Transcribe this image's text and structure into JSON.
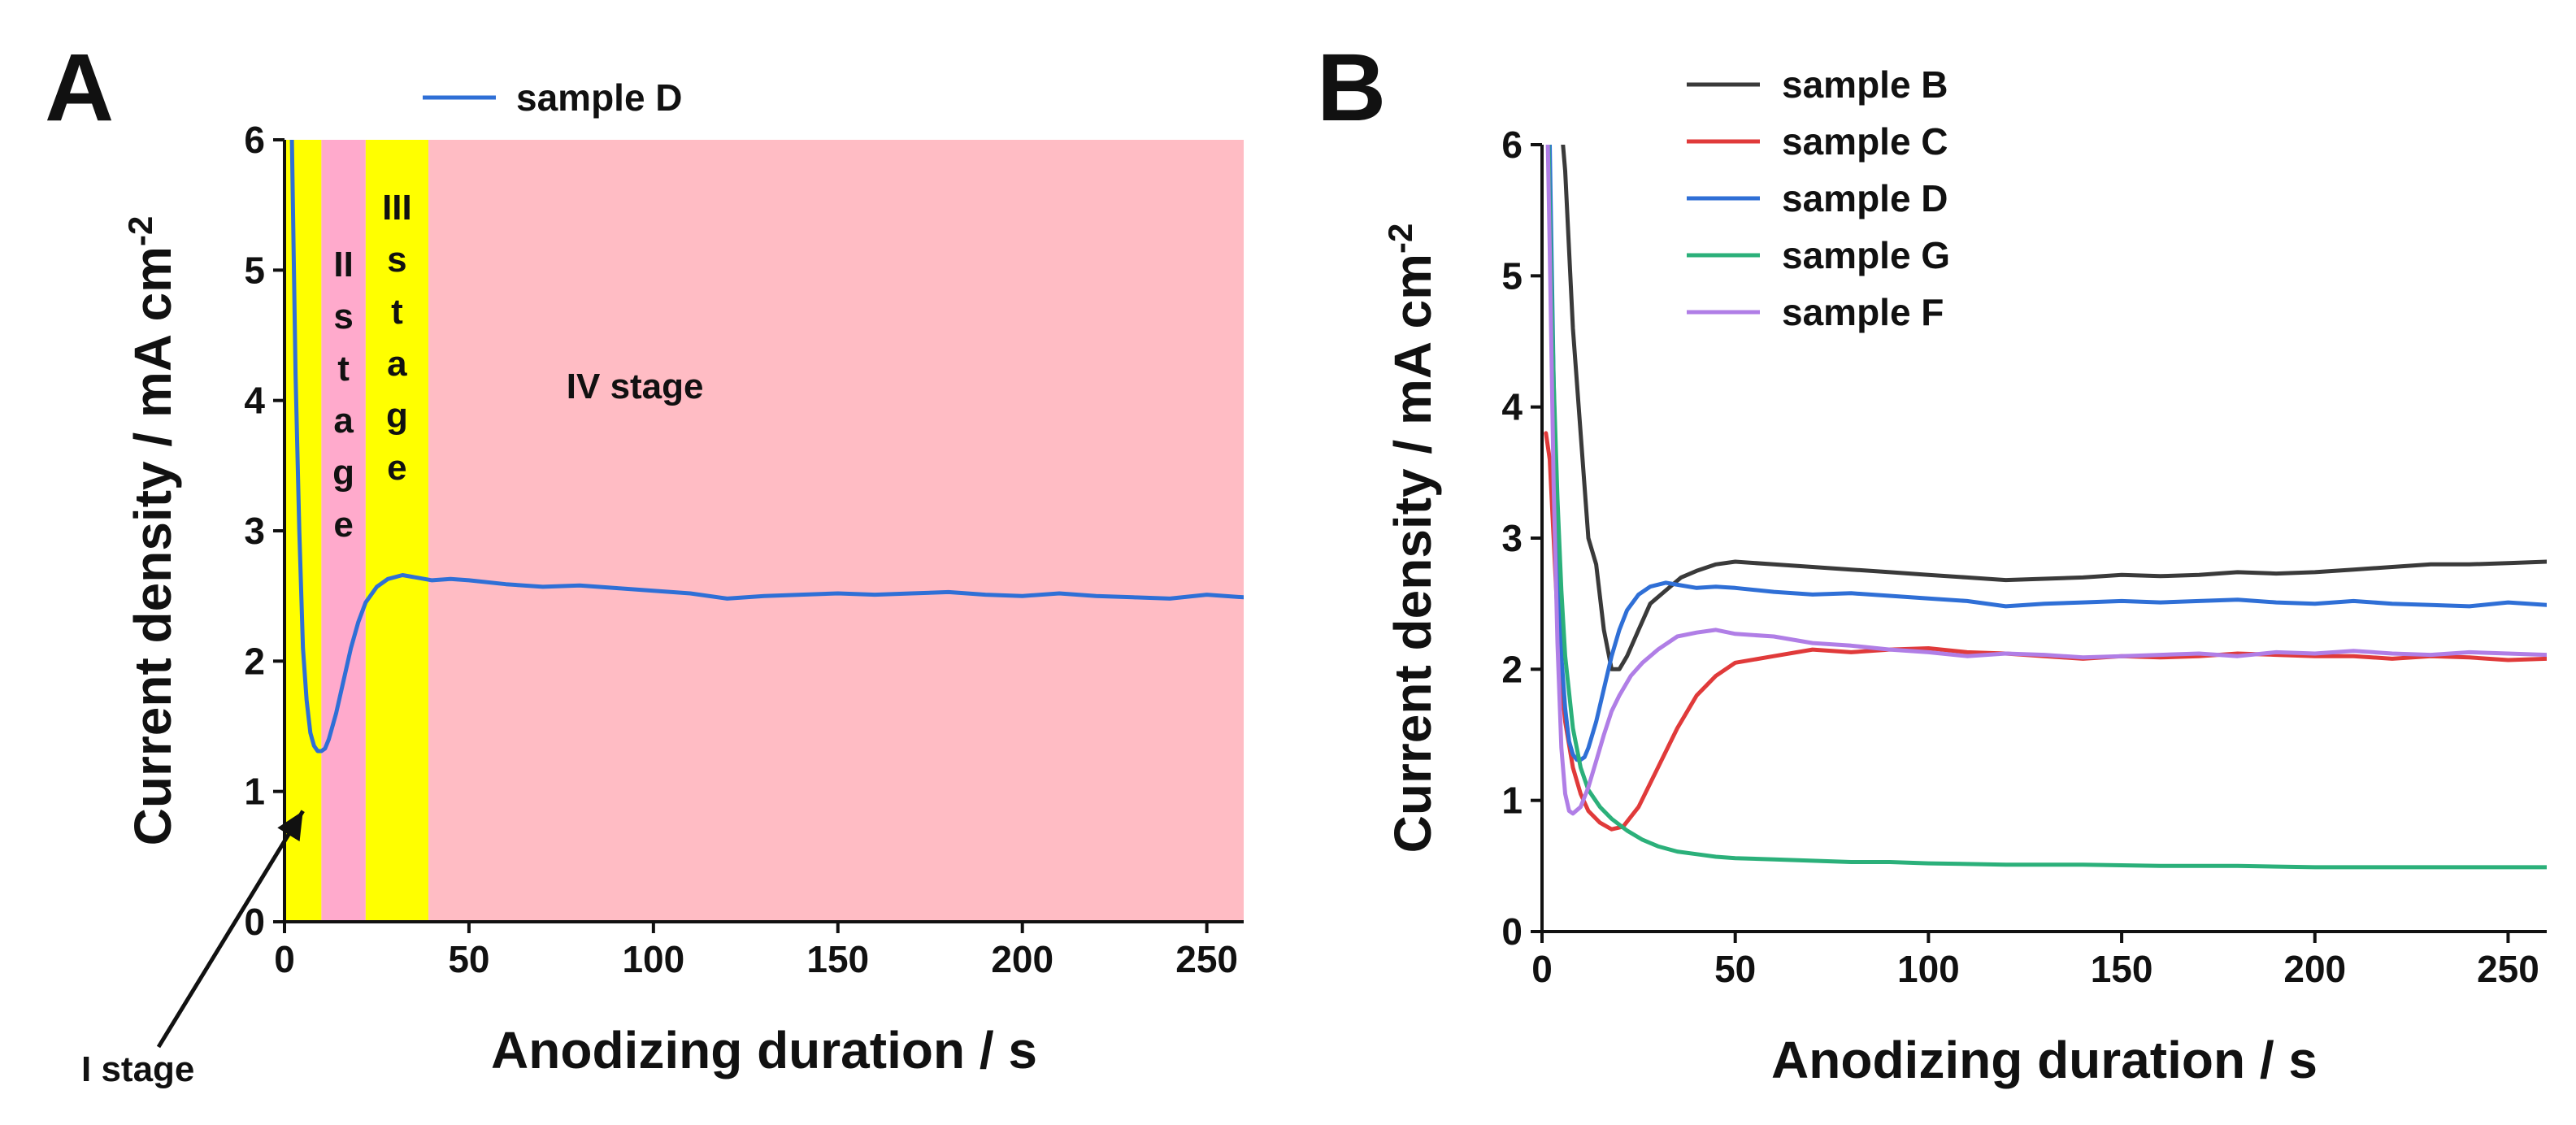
{
  "panels": [
    {
      "letter": "A",
      "chart_data": {
        "type": "line",
        "xlabel": "Anodizing duration / s",
        "ylabel_main": "Current density / mA cm",
        "ylabel_sup": "-2",
        "xlim": [
          0,
          260
        ],
        "ylim": [
          0,
          6
        ],
        "xticks": [
          0,
          50,
          100,
          150,
          200,
          250
        ],
        "yticks": [
          0,
          1,
          2,
          3,
          4,
          5,
          6
        ],
        "legend_position": "top",
        "stages": [
          {
            "label": "I stage",
            "x_start": 0,
            "x_end": 10,
            "color": "#ffff00"
          },
          {
            "label": "II stage",
            "x_start": 10,
            "x_end": 22,
            "color": "#ffaacc"
          },
          {
            "label": "III stage",
            "x_start": 22,
            "x_end": 39,
            "color": "#ffff00"
          },
          {
            "label": "IV stage",
            "x_start": 39,
            "x_end": 260,
            "color": "#ffbcc4"
          }
        ],
        "stage_vertical_letters": {
          "II": [
            "II",
            "s",
            "t",
            "a",
            "g",
            "e"
          ],
          "III": [
            "III",
            "s",
            "t",
            "a",
            "g",
            "e"
          ]
        },
        "series": [
          {
            "name": "sample D",
            "color": "#2f6fd6",
            "x": [
              1,
              2,
              3,
              4,
              5,
              6,
              7,
              8,
              9,
              10,
              11,
              12,
              14,
              16,
              18,
              20,
              22,
              25,
              28,
              32,
              36,
              40,
              45,
              50,
              60,
              70,
              80,
              90,
              100,
              110,
              120,
              130,
              140,
              150,
              160,
              170,
              180,
              190,
              200,
              210,
              220,
              230,
              240,
              250,
              260
            ],
            "y": [
              7.2,
              6.0,
              4.2,
              3.0,
              2.1,
              1.7,
              1.45,
              1.35,
              1.31,
              1.31,
              1.33,
              1.4,
              1.6,
              1.85,
              2.1,
              2.3,
              2.45,
              2.57,
              2.63,
              2.66,
              2.64,
              2.62,
              2.63,
              2.62,
              2.59,
              2.57,
              2.58,
              2.56,
              2.54,
              2.52,
              2.48,
              2.5,
              2.51,
              2.52,
              2.51,
              2.52,
              2.53,
              2.51,
              2.5,
              2.52,
              2.5,
              2.49,
              2.48,
              2.51,
              2.49
            ]
          }
        ]
      }
    },
    {
      "letter": "B",
      "chart_data": {
        "type": "line",
        "xlabel": "Anodizing duration / s",
        "ylabel_main": "Current density / mA cm",
        "ylabel_sup": "-2",
        "xlim": [
          0,
          260
        ],
        "ylim": [
          0,
          6
        ],
        "xticks": [
          0,
          50,
          100,
          150,
          200,
          250
        ],
        "yticks": [
          0,
          1,
          2,
          3,
          4,
          5,
          6
        ],
        "legend_position": "top-left",
        "series": [
          {
            "name": "sample B",
            "color": "#3a3a3a",
            "x": [
              2,
              4,
              6,
              8,
              10,
              12,
              14,
              16,
              18,
              20,
              22,
              25,
              28,
              32,
              36,
              40,
              45,
              50,
              60,
              70,
              80,
              90,
              100,
              110,
              120,
              130,
              140,
              150,
              160,
              170,
              180,
              190,
              200,
              210,
              220,
              230,
              240,
              250,
              260
            ],
            "y": [
              7.0,
              6.5,
              5.8,
              4.6,
              3.8,
              3.0,
              2.8,
              2.3,
              2.0,
              2.0,
              2.1,
              2.3,
              2.5,
              2.6,
              2.7,
              2.75,
              2.8,
              2.82,
              2.8,
              2.78,
              2.76,
              2.74,
              2.72,
              2.7,
              2.68,
              2.69,
              2.7,
              2.72,
              2.71,
              2.72,
              2.74,
              2.73,
              2.74,
              2.76,
              2.78,
              2.8,
              2.8,
              2.81,
              2.82
            ]
          },
          {
            "name": "sample C",
            "color": "#e03a3a",
            "x": [
              1,
              2,
              3,
              4,
              5,
              6,
              8,
              10,
              12,
              15,
              18,
              21,
              25,
              30,
              35,
              40,
              45,
              50,
              60,
              70,
              80,
              90,
              100,
              110,
              120,
              130,
              140,
              150,
              160,
              170,
              180,
              190,
              200,
              210,
              220,
              230,
              240,
              250,
              260
            ],
            "y": [
              3.8,
              3.6,
              3.0,
              2.4,
              1.9,
              1.6,
              1.25,
              1.05,
              0.92,
              0.83,
              0.78,
              0.8,
              0.95,
              1.25,
              1.55,
              1.8,
              1.95,
              2.05,
              2.1,
              2.15,
              2.13,
              2.15,
              2.16,
              2.13,
              2.12,
              2.1,
              2.08,
              2.1,
              2.09,
              2.1,
              2.12,
              2.11,
              2.1,
              2.1,
              2.08,
              2.1,
              2.09,
              2.07,
              2.08
            ]
          },
          {
            "name": "sample D",
            "color": "#2f6fd6",
            "x": [
              1,
              2,
              3,
              4,
              5,
              6,
              7,
              8,
              9,
              10,
              11,
              12,
              14,
              16,
              18,
              20,
              22,
              25,
              28,
              32,
              36,
              40,
              45,
              50,
              60,
              70,
              80,
              90,
              100,
              110,
              120,
              130,
              140,
              150,
              160,
              170,
              180,
              190,
              200,
              210,
              220,
              230,
              240,
              250,
              260
            ],
            "y": [
              7.2,
              6.0,
              4.2,
              3.0,
              2.1,
              1.7,
              1.45,
              1.35,
              1.31,
              1.31,
              1.33,
              1.4,
              1.6,
              1.85,
              2.1,
              2.3,
              2.45,
              2.57,
              2.63,
              2.66,
              2.64,
              2.62,
              2.63,
              2.62,
              2.59,
              2.57,
              2.58,
              2.56,
              2.54,
              2.52,
              2.48,
              2.5,
              2.51,
              2.52,
              2.51,
              2.52,
              2.53,
              2.51,
              2.5,
              2.52,
              2.5,
              2.49,
              2.48,
              2.51,
              2.49
            ]
          },
          {
            "name": "sample G",
            "color": "#2bb07a",
            "x": [
              1,
              2,
              3,
              4,
              5,
              6,
              8,
              10,
              12,
              15,
              18,
              22,
              26,
              30,
              35,
              40,
              45,
              50,
              60,
              70,
              80,
              90,
              100,
              120,
              140,
              160,
              180,
              200,
              220,
              240,
              260
            ],
            "y": [
              7.0,
              5.5,
              4.2,
              3.3,
              2.6,
              2.1,
              1.55,
              1.25,
              1.08,
              0.95,
              0.86,
              0.77,
              0.7,
              0.65,
              0.61,
              0.59,
              0.57,
              0.56,
              0.55,
              0.54,
              0.53,
              0.53,
              0.52,
              0.51,
              0.51,
              0.5,
              0.5,
              0.49,
              0.49,
              0.49,
              0.49
            ]
          },
          {
            "name": "sample F",
            "color": "#b07ee6",
            "x": [
              1,
              2,
              3,
              4,
              5,
              6,
              7,
              8,
              10,
              12,
              14,
              16,
              18,
              20,
              23,
              26,
              30,
              35,
              40,
              45,
              50,
              60,
              70,
              80,
              90,
              100,
              110,
              120,
              130,
              140,
              150,
              160,
              170,
              180,
              190,
              200,
              210,
              220,
              230,
              240,
              250,
              260
            ],
            "y": [
              6.8,
              5.2,
              3.4,
              2.2,
              1.4,
              1.05,
              0.92,
              0.9,
              0.95,
              1.1,
              1.3,
              1.5,
              1.68,
              1.8,
              1.95,
              2.05,
              2.15,
              2.25,
              2.28,
              2.3,
              2.27,
              2.25,
              2.2,
              2.18,
              2.15,
              2.13,
              2.1,
              2.12,
              2.11,
              2.09,
              2.1,
              2.11,
              2.12,
              2.1,
              2.13,
              2.12,
              2.14,
              2.12,
              2.11,
              2.13,
              2.12,
              2.11
            ]
          }
        ]
      }
    }
  ]
}
